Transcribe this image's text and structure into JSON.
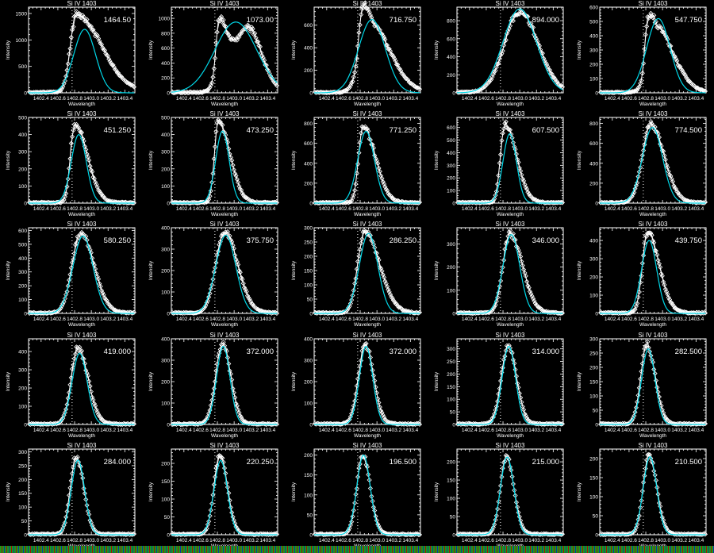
{
  "chart_data": {
    "type": "line",
    "layout": "5x5 grid of panels",
    "common": {
      "title": "Si IV 1403",
      "xlabel": "Wavelength",
      "ylabel": "Intensity",
      "xlim": [
        1402.25,
        1403.52
      ],
      "xticks": [
        "1402.4",
        "1402.6",
        "1402.8",
        "1403.0",
        "1403.2",
        "1403.4"
      ],
      "xtick_values": [
        1402.4,
        1402.6,
        1402.8,
        1403.0,
        1403.2,
        1403.4
      ],
      "reference_line": 1402.77,
      "colors": {
        "observed": "#ffffff",
        "fit": "#00d8e8",
        "background": "#000000"
      }
    },
    "panels": [
      {
        "label": "1464.50",
        "ymax": 1620,
        "ystep": 500,
        "fit": {
          "a": 1200,
          "c": 1402.92,
          "s": 0.13
        },
        "obs": [
          {
            "a": 1460,
            "c": 1402.82,
            "sl": 0.07,
            "sr": 0.3
          }
        ]
      },
      {
        "label": "1073.00",
        "ymax": 1150,
        "ystep": 200,
        "fit": {
          "a": 950,
          "c": 1403.02,
          "s": 0.25
        },
        "obs": [
          {
            "a": 520,
            "c": 1402.81,
            "sl": 0.03,
            "sr": 0.06
          },
          {
            "a": 560,
            "c": 1402.88,
            "sl": 0.08,
            "sr": 0.1
          },
          {
            "a": 860,
            "c": 1403.17,
            "sl": 0.14,
            "sr": 0.16
          }
        ]
      },
      {
        "label": "716.750",
        "ymax": 760,
        "ystep": 200,
        "fit": {
          "a": 650,
          "c": 1402.94,
          "s": 0.16
        },
        "obs": [
          {
            "a": 280,
            "c": 1402.81,
            "sl": 0.03,
            "sr": 0.06
          },
          {
            "a": 620,
            "c": 1402.9,
            "sl": 0.1,
            "sr": 0.25
          }
        ]
      },
      {
        "label": "894.000",
        "ymax": 950,
        "ystep": 200,
        "fit": {
          "a": 930,
          "c": 1403.0,
          "s": 0.2
        },
        "obs": [
          {
            "a": 900,
            "c": 1403.0,
            "sl": 0.18,
            "sr": 0.22
          }
        ]
      },
      {
        "label": "547.750",
        "ymax": 600,
        "ystep": 100,
        "fit": {
          "a": 520,
          "c": 1402.95,
          "s": 0.14
        },
        "obs": [
          {
            "a": 230,
            "c": 1402.81,
            "sl": 0.025,
            "sr": 0.05
          },
          {
            "a": 470,
            "c": 1402.9,
            "sl": 0.08,
            "sr": 0.22
          }
        ]
      },
      {
        "label": "451.250",
        "ymax": 500,
        "ystep": 100,
        "fit": {
          "a": 400,
          "c": 1402.85,
          "s": 0.09
        },
        "obs": [
          {
            "a": 460,
            "c": 1402.8,
            "sl": 0.05,
            "sr": 0.15
          }
        ]
      },
      {
        "label": "473.250",
        "ymax": 500,
        "ystep": 100,
        "fit": {
          "a": 420,
          "c": 1402.86,
          "s": 0.08
        },
        "obs": [
          {
            "a": 470,
            "c": 1402.81,
            "sl": 0.045,
            "sr": 0.14
          }
        ]
      },
      {
        "label": "771.250",
        "ymax": 860,
        "ystep": 200,
        "fit": {
          "a": 720,
          "c": 1402.87,
          "s": 0.1
        },
        "obs": [
          {
            "a": 770,
            "c": 1402.83,
            "sl": 0.05,
            "sr": 0.15
          }
        ]
      },
      {
        "label": "607.500",
        "ymax": 680,
        "ystep": 100,
        "fit": {
          "a": 550,
          "c": 1402.88,
          "s": 0.08
        },
        "obs": [
          {
            "a": 620,
            "c": 1402.82,
            "sl": 0.05,
            "sr": 0.14
          }
        ]
      },
      {
        "label": "774.500",
        "ymax": 860,
        "ystep": 200,
        "fit": {
          "a": 760,
          "c": 1402.88,
          "s": 0.12
        },
        "obs": [
          {
            "a": 780,
            "c": 1402.86,
            "sl": 0.1,
            "sr": 0.16
          }
        ]
      },
      {
        "label": "580.250",
        "ymax": 620,
        "ystep": 100,
        "fit": {
          "a": 560,
          "c": 1402.9,
          "s": 0.12
        },
        "obs": [
          {
            "a": 580,
            "c": 1402.87,
            "sl": 0.1,
            "sr": 0.16
          }
        ]
      },
      {
        "label": "375.750",
        "ymax": 400,
        "ystep": 100,
        "fit": {
          "a": 365,
          "c": 1402.9,
          "s": 0.12
        },
        "obs": [
          {
            "a": 380,
            "c": 1402.88,
            "sl": 0.1,
            "sr": 0.16
          }
        ]
      },
      {
        "label": "286.250",
        "ymax": 300,
        "ystep": 50,
        "fit": {
          "a": 280,
          "c": 1402.9,
          "s": 0.11
        },
        "obs": [
          {
            "a": 285,
            "c": 1402.85,
            "sl": 0.08,
            "sr": 0.18
          }
        ]
      },
      {
        "label": "346.000",
        "ymax": 370,
        "ystep": 100,
        "fit": {
          "a": 340,
          "c": 1402.9,
          "s": 0.1
        },
        "obs": [
          {
            "a": 345,
            "c": 1402.88,
            "sl": 0.08,
            "sr": 0.15
          }
        ]
      },
      {
        "label": "439.750",
        "ymax": 470,
        "ystep": 100,
        "fit": {
          "a": 400,
          "c": 1402.84,
          "s": 0.09
        },
        "obs": [
          {
            "a": 440,
            "c": 1402.82,
            "sl": 0.06,
            "sr": 0.14
          }
        ]
      },
      {
        "label": "419.000",
        "ymax": 470,
        "ystep": 100,
        "fit": {
          "a": 390,
          "c": 1402.86,
          "s": 0.09
        },
        "obs": [
          {
            "a": 420,
            "c": 1402.84,
            "sl": 0.08,
            "sr": 0.12
          }
        ]
      },
      {
        "label": "372.000",
        "ymax": 400,
        "ystep": 100,
        "fit": {
          "a": 365,
          "c": 1402.87,
          "s": 0.08
        },
        "obs": [
          {
            "a": 372,
            "c": 1402.86,
            "sl": 0.08,
            "sr": 0.1
          }
        ]
      },
      {
        "label": "372.000",
        "ymax": 400,
        "ystep": 100,
        "fit": {
          "a": 365,
          "c": 1402.87,
          "s": 0.08
        },
        "obs": [
          {
            "a": 372,
            "c": 1402.86,
            "sl": 0.08,
            "sr": 0.1
          }
        ]
      },
      {
        "label": "314.000",
        "ymax": 340,
        "ystep": 50,
        "fit": {
          "a": 310,
          "c": 1402.87,
          "s": 0.08
        },
        "obs": [
          {
            "a": 314,
            "c": 1402.86,
            "sl": 0.08,
            "sr": 0.1
          }
        ]
      },
      {
        "label": "282.500",
        "ymax": 300,
        "ystep": 50,
        "fit": {
          "a": 265,
          "c": 1402.83,
          "s": 0.08
        },
        "obs": [
          {
            "a": 282,
            "c": 1402.81,
            "sl": 0.07,
            "sr": 0.1
          }
        ]
      },
      {
        "label": "284.000",
        "ymax": 310,
        "ystep": 50,
        "fit": {
          "a": 270,
          "c": 1402.84,
          "s": 0.08
        },
        "obs": [
          {
            "a": 284,
            "c": 1402.82,
            "sl": 0.07,
            "sr": 0.09
          }
        ]
      },
      {
        "label": "220.250",
        "ymax": 240,
        "ystep": 50,
        "fit": {
          "a": 208,
          "c": 1402.84,
          "s": 0.08
        },
        "obs": [
          {
            "a": 220,
            "c": 1402.83,
            "sl": 0.07,
            "sr": 0.09
          }
        ]
      },
      {
        "label": "196.500",
        "ymax": 215,
        "ystep": 50,
        "fit": {
          "a": 200,
          "c": 1402.84,
          "s": 0.08
        },
        "obs": [
          {
            "a": 197,
            "c": 1402.83,
            "sl": 0.07,
            "sr": 0.09
          }
        ]
      },
      {
        "label": "215.000",
        "ymax": 235,
        "ystep": 50,
        "fit": {
          "a": 213,
          "c": 1402.85,
          "s": 0.08
        },
        "obs": [
          {
            "a": 215,
            "c": 1402.84,
            "sl": 0.07,
            "sr": 0.09
          }
        ]
      },
      {
        "label": "210.500",
        "ymax": 225,
        "ystep": 50,
        "fit": {
          "a": 205,
          "c": 1402.85,
          "s": 0.08
        },
        "obs": [
          {
            "a": 210,
            "c": 1402.84,
            "sl": 0.07,
            "sr": 0.09
          }
        ]
      }
    ]
  }
}
